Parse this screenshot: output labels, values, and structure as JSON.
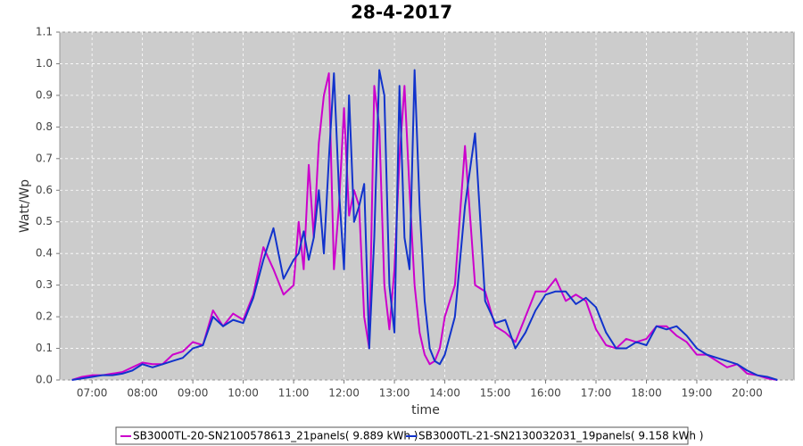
{
  "chart_data": {
    "type": "line",
    "title": "28-4-2017",
    "x_label": "time",
    "y_label": "Watt/Wp",
    "x": [
      6.6,
      6.8,
      7.0,
      7.2,
      7.4,
      7.6,
      7.8,
      8.0,
      8.2,
      8.4,
      8.6,
      8.8,
      9.0,
      9.2,
      9.4,
      9.6,
      9.8,
      10.0,
      10.2,
      10.4,
      10.6,
      10.8,
      11.0,
      11.1,
      11.2,
      11.3,
      11.4,
      11.5,
      11.6,
      11.7,
      11.8,
      11.9,
      12.0,
      12.1,
      12.2,
      12.3,
      12.4,
      12.5,
      12.6,
      12.7,
      12.8,
      12.9,
      13.0,
      13.1,
      13.2,
      13.3,
      13.4,
      13.5,
      13.6,
      13.7,
      13.8,
      13.9,
      14.0,
      14.2,
      14.4,
      14.6,
      14.8,
      15.0,
      15.2,
      15.4,
      15.6,
      15.8,
      16.0,
      16.2,
      16.4,
      16.6,
      16.8,
      17.0,
      17.2,
      17.4,
      17.6,
      17.8,
      18.0,
      18.2,
      18.4,
      18.6,
      18.8,
      19.0,
      19.2,
      19.4,
      19.6,
      19.8,
      20.0,
      20.2,
      20.4,
      20.6
    ],
    "series": [
      {
        "name": "SB3000TL-20-SN2100578613_21panels( 9.889 kWh )",
        "color": "#cc00cc",
        "values": [
          0,
          0.01,
          0.015,
          0.015,
          0.02,
          0.025,
          0.04,
          0.055,
          0.05,
          0.05,
          0.08,
          0.09,
          0.12,
          0.11,
          0.22,
          0.17,
          0.21,
          0.19,
          0.27,
          0.42,
          0.35,
          0.27,
          0.3,
          0.5,
          0.35,
          0.68,
          0.45,
          0.75,
          0.9,
          0.97,
          0.35,
          0.55,
          0.86,
          0.52,
          0.6,
          0.55,
          0.2,
          0.1,
          0.93,
          0.8,
          0.3,
          0.16,
          0.35,
          0.7,
          0.93,
          0.6,
          0.3,
          0.15,
          0.08,
          0.05,
          0.06,
          0.1,
          0.2,
          0.3,
          0.74,
          0.3,
          0.28,
          0.17,
          0.15,
          0.12,
          0.2,
          0.28,
          0.28,
          0.32,
          0.25,
          0.27,
          0.25,
          0.16,
          0.11,
          0.1,
          0.13,
          0.12,
          0.13,
          0.17,
          0.17,
          0.14,
          0.12,
          0.08,
          0.08,
          0.06,
          0.04,
          0.05,
          0.02,
          0.015,
          0.005,
          0
        ]
      },
      {
        "name": "SB3000TL-21-SN2130032031_19panels( 9.158 kWh )",
        "color": "#1133cc",
        "values": [
          0,
          0.005,
          0.01,
          0.015,
          0.015,
          0.02,
          0.03,
          0.05,
          0.04,
          0.05,
          0.06,
          0.07,
          0.1,
          0.11,
          0.2,
          0.17,
          0.19,
          0.18,
          0.26,
          0.38,
          0.48,
          0.32,
          0.38,
          0.4,
          0.47,
          0.38,
          0.45,
          0.6,
          0.4,
          0.7,
          0.97,
          0.6,
          0.35,
          0.9,
          0.5,
          0.55,
          0.62,
          0.1,
          0.45,
          0.98,
          0.9,
          0.3,
          0.15,
          0.93,
          0.45,
          0.35,
          0.98,
          0.55,
          0.25,
          0.1,
          0.06,
          0.05,
          0.08,
          0.2,
          0.55,
          0.78,
          0.25,
          0.18,
          0.19,
          0.1,
          0.15,
          0.22,
          0.27,
          0.28,
          0.28,
          0.24,
          0.26,
          0.23,
          0.15,
          0.1,
          0.1,
          0.12,
          0.11,
          0.17,
          0.16,
          0.17,
          0.14,
          0.1,
          0.08,
          0.07,
          0.06,
          0.05,
          0.03,
          0.015,
          0.01,
          0
        ]
      }
    ],
    "xlim": [
      6.36,
      20.93
    ],
    "xticks": [
      {
        "value": 7,
        "label": "07:00"
      },
      {
        "value": 8,
        "label": "08:00"
      },
      {
        "value": 9,
        "label": "09:00"
      },
      {
        "value": 10,
        "label": "10:00"
      },
      {
        "value": 11,
        "label": "11:00"
      },
      {
        "value": 12,
        "label": "12:00"
      },
      {
        "value": 13,
        "label": "13:00"
      },
      {
        "value": 14,
        "label": "14:00"
      },
      {
        "value": 15,
        "label": "15:00"
      },
      {
        "value": 16,
        "label": "16:00"
      },
      {
        "value": 17,
        "label": "17:00"
      },
      {
        "value": 18,
        "label": "18:00"
      },
      {
        "value": 19,
        "label": "19:00"
      },
      {
        "value": 20,
        "label": "20:00"
      }
    ],
    "ylim": [
      0,
      1.1
    ],
    "yticks": [
      {
        "value": 0,
        "label": "0.0"
      },
      0.1,
      0.2,
      0.3,
      0.4,
      0.5,
      0.6,
      0.7,
      0.8,
      0.9,
      {
        "value": 1,
        "label": "1.0"
      },
      1.1
    ],
    "grid": true,
    "legend": "bottom"
  }
}
